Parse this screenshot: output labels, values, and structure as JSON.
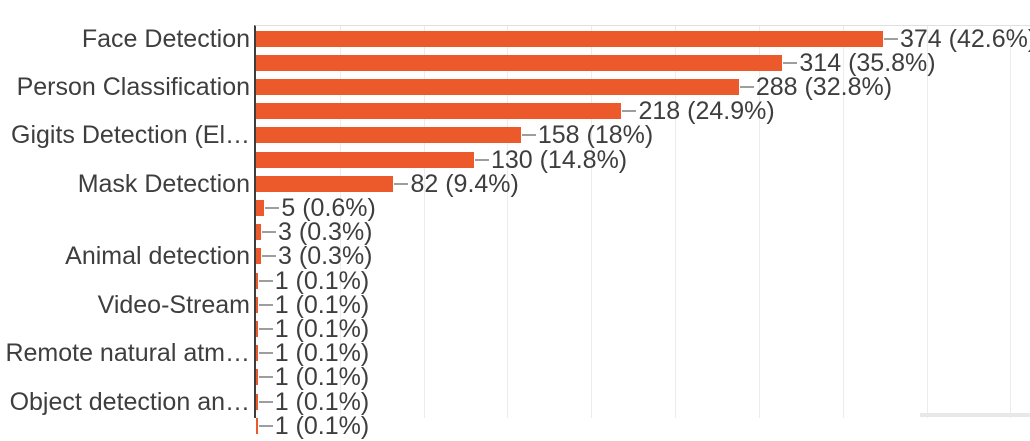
{
  "chart_data": {
    "type": "bar",
    "orientation": "horizontal",
    "title": "",
    "xlabel": "",
    "ylabel": "",
    "legend": "none",
    "grid": "vertical-only",
    "x_axis": {
      "min": 0,
      "visible_max": 450,
      "gridline_step": 50,
      "tick_labels_visible": false
    },
    "colors": {
      "bar": "#EC5A2B",
      "axis_line": "#3d3d3d",
      "gridline": "#ececec",
      "plot_top_border": "#e0e0e0",
      "stem": "#9e9e9e",
      "text": "#3e3e3e",
      "edge_strip": "#e8e8e8"
    },
    "rows": [
      {
        "category": "Face Detection",
        "value": 374,
        "label": "374 (42.6%)"
      },
      {
        "category": "",
        "value": 314,
        "label": "314 (35.8%)"
      },
      {
        "category": "Person Classification",
        "value": 288,
        "label": "288 (32.8%)"
      },
      {
        "category": "",
        "value": 218,
        "label": "218 (24.9%)"
      },
      {
        "category": "Gigits Detection (El…",
        "value": 158,
        "label": "158 (18%)"
      },
      {
        "category": "",
        "value": 130,
        "label": "130 (14.8%)"
      },
      {
        "category": "Mask Detection",
        "value": 82,
        "label": "82 (9.4%)"
      },
      {
        "category": "",
        "value": 5,
        "label": "5 (0.6%)"
      },
      {
        "category": "",
        "value": 3,
        "label": "3 (0.3%)"
      },
      {
        "category": "Animal detection",
        "value": 3,
        "label": "3 (0.3%)"
      },
      {
        "category": "",
        "value": 1,
        "label": "1 (0.1%)"
      },
      {
        "category": "Video-Stream",
        "value": 1,
        "label": "1 (0.1%)"
      },
      {
        "category": "",
        "value": 1,
        "label": "1 (0.1%)"
      },
      {
        "category": "Remote natural atm…",
        "value": 1,
        "label": "1 (0.1%)"
      },
      {
        "category": "",
        "value": 1,
        "label": "1 (0.1%)"
      },
      {
        "category": "Object detection an…",
        "value": 1,
        "label": "1 (0.1%)"
      },
      {
        "category": "",
        "value": 1,
        "label": "1 (0.1%)",
        "clipped": true
      }
    ]
  }
}
